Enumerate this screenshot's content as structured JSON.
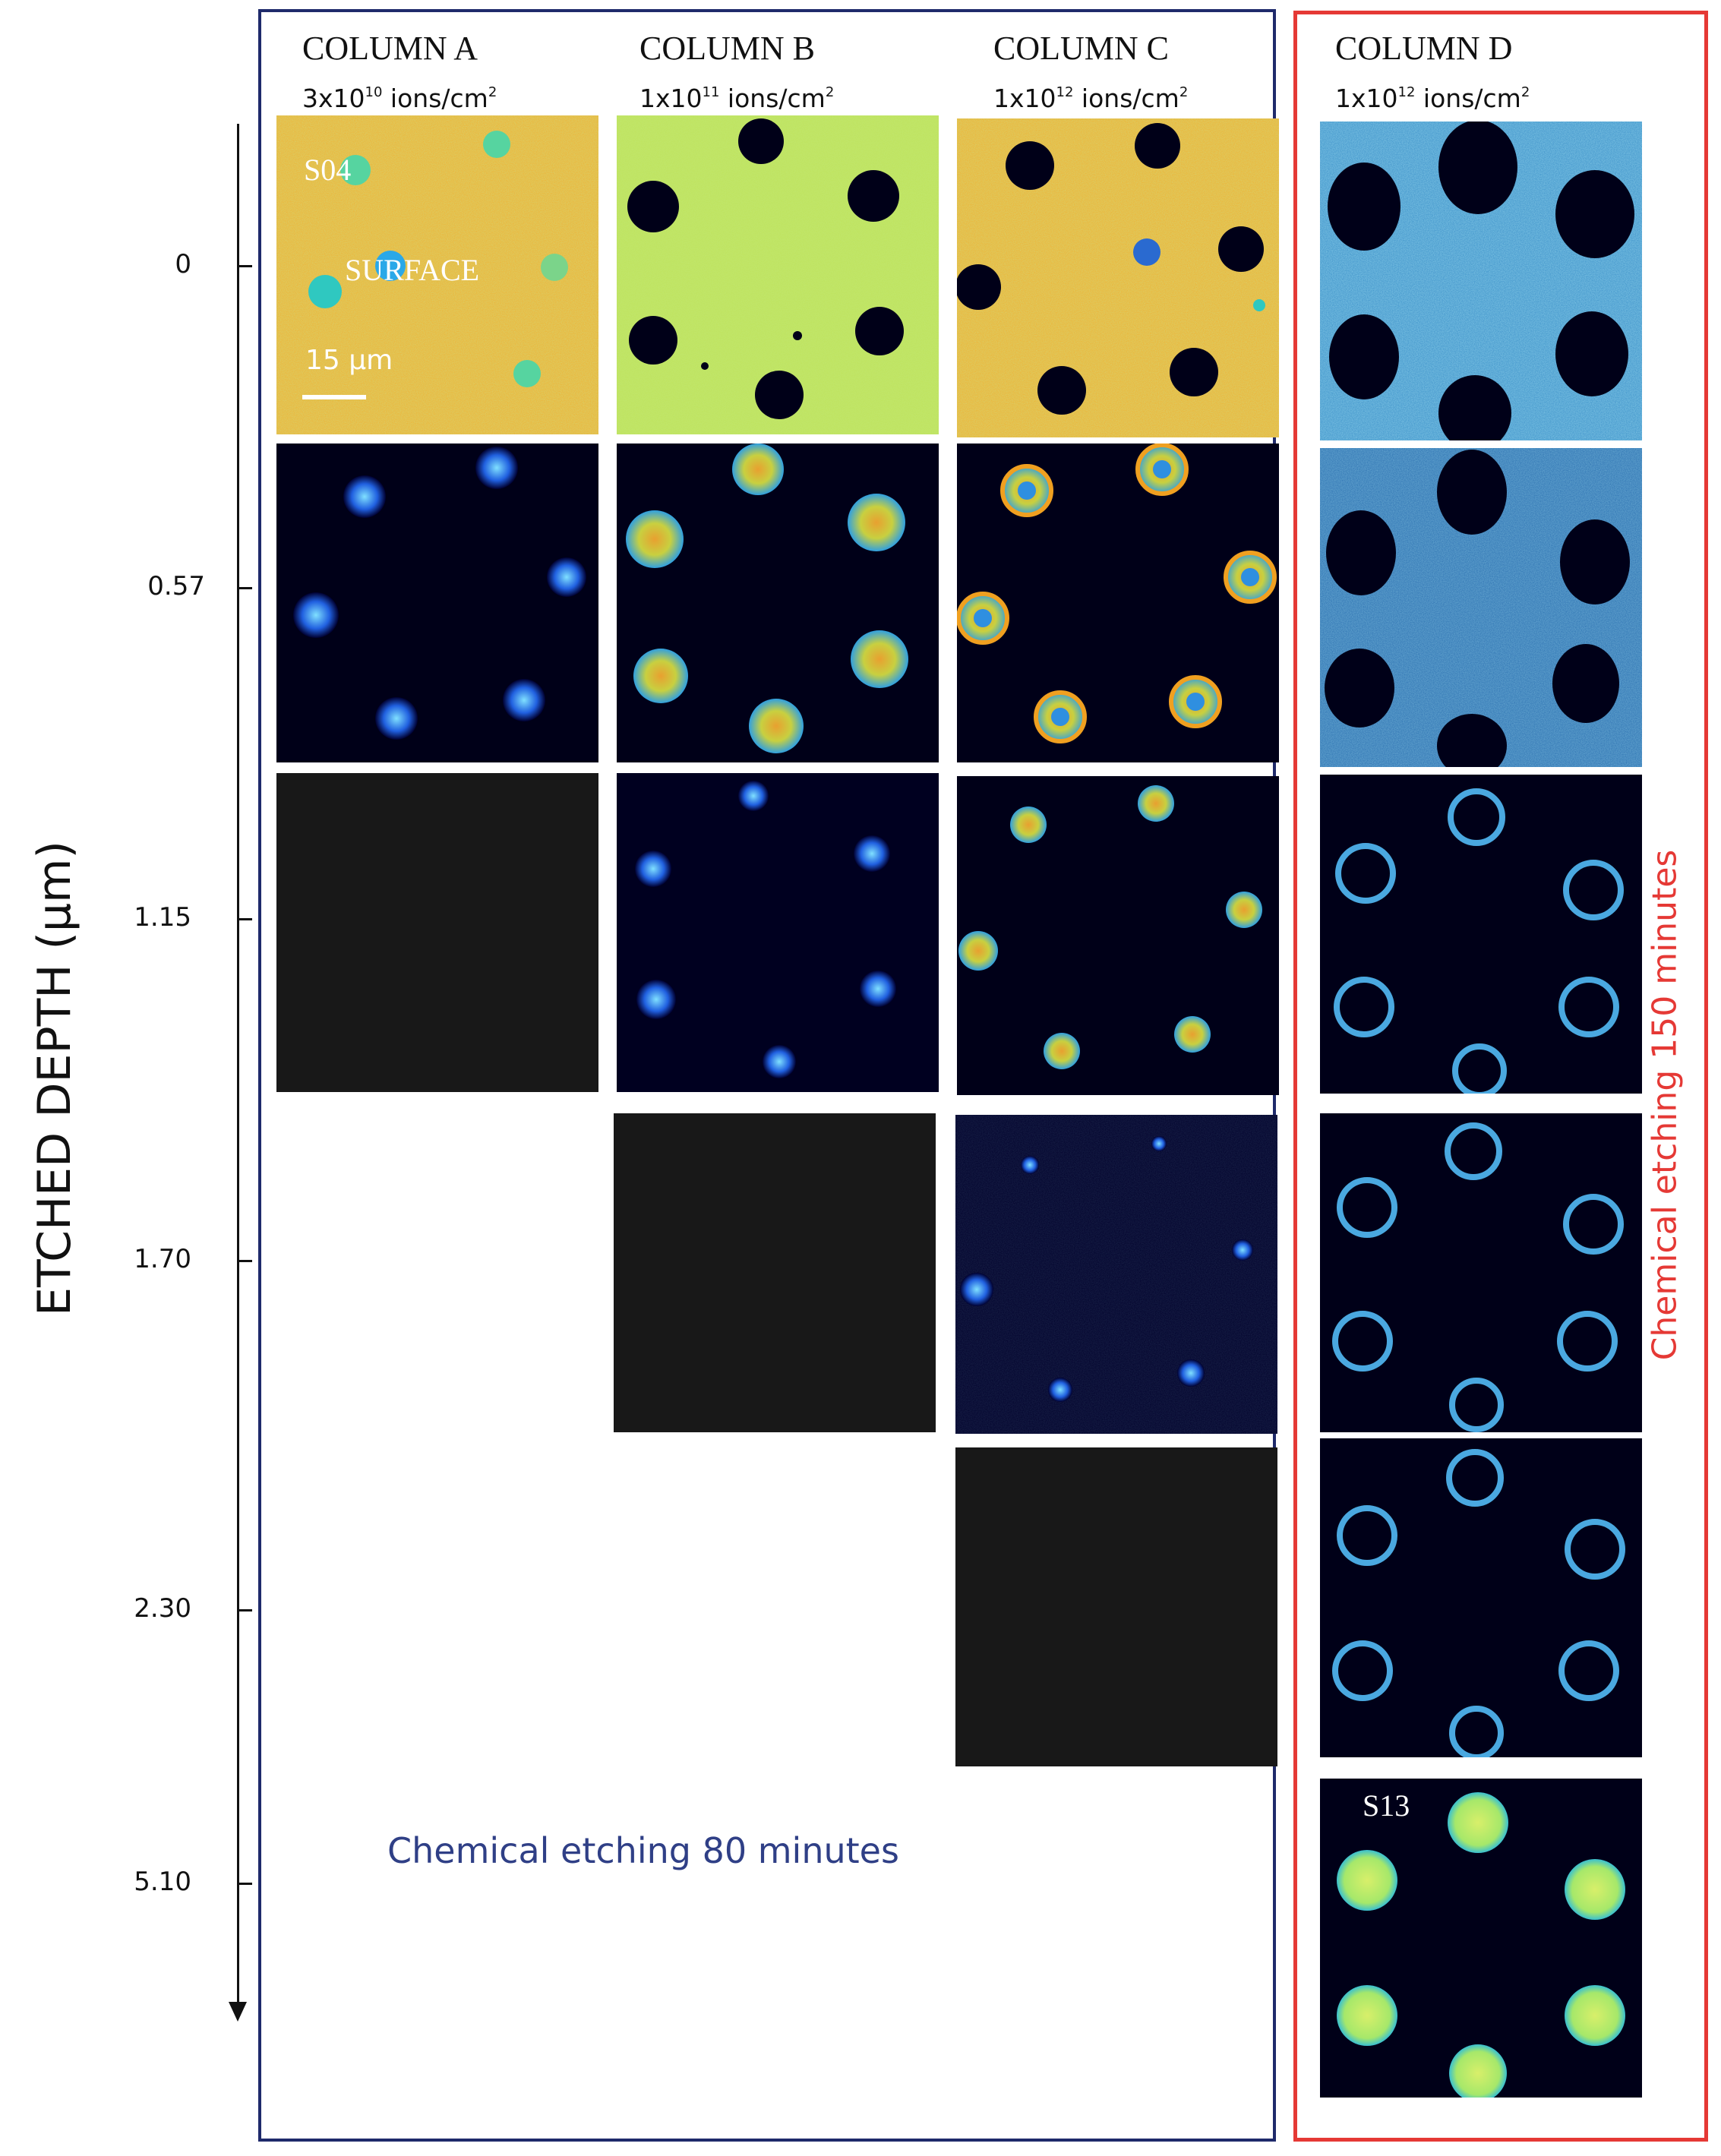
{
  "columns": [
    {
      "title": "COLUMN A",
      "dose_base": "3x10",
      "dose_exp": "10",
      "dose_unit": " ions/cm",
      "dose_unit_exp": "2"
    },
    {
      "title": "COLUMN B",
      "dose_base": "1x10",
      "dose_exp": "11",
      "dose_unit": " ions/cm",
      "dose_unit_exp": "2"
    },
    {
      "title": "COLUMN C",
      "dose_base": "1x10",
      "dose_exp": "12",
      "dose_unit": " ions/cm",
      "dose_unit_exp": "2"
    },
    {
      "title": "COLUMN D",
      "dose_base": "1x10",
      "dose_exp": "12",
      "dose_unit": " ions/cm",
      "dose_unit_exp": "2"
    }
  ],
  "axis": {
    "title": "ETCHED DEPTH (µm)",
    "ticks": [
      "0",
      "0.57",
      "1.15",
      "1.70",
      "2.30",
      "5.10"
    ]
  },
  "panel_labels": {
    "s04": "S04",
    "surface": "SURFACE",
    "scale": "15 µm",
    "s13": "S13"
  },
  "captions": {
    "blue": "Chemical etching 80 minutes",
    "red_prefix": "Chemical etching ",
    "red_suffix": "150 minutes"
  },
  "colors": {
    "blue_box": "#1f2a6b",
    "red_box": "#e53935",
    "blue_caption": "#2f3f86",
    "surface_orange": "#f0b030",
    "surface_green": "#bfe35a",
    "dark": "#000018"
  }
}
